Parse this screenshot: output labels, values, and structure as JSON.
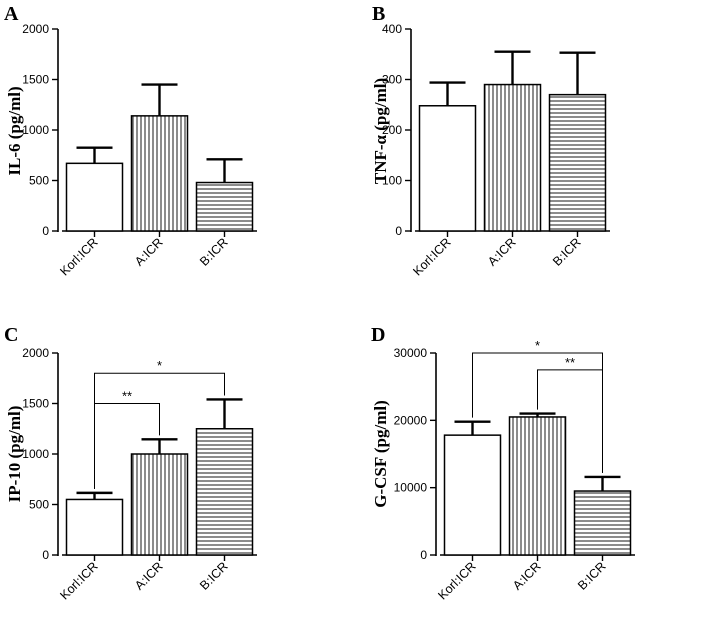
{
  "figure": {
    "patterns": [
      "plain",
      "vertical-hatch",
      "horizontal-hatch"
    ]
  },
  "chart_data": [
    {
      "panel": "A",
      "type": "bar",
      "categories": [
        "Korl:ICR",
        "A:ICR",
        "B:ICR"
      ],
      "values": [
        670,
        1140,
        480
      ],
      "errors": [
        155,
        310,
        230
      ],
      "ylabel": "IL-6 (pg/ml)",
      "ylim": [
        0,
        2000
      ],
      "yticks": [
        0,
        500,
        1000,
        1500,
        2000
      ],
      "ytick_labels": [
        "0",
        "500",
        "1000",
        "1500",
        "2000"
      ],
      "significance": []
    },
    {
      "panel": "B",
      "type": "bar",
      "categories": [
        "Korl:ICR",
        "A:ICR",
        "B:ICR"
      ],
      "values": [
        248,
        290,
        270
      ],
      "errors": [
        46,
        65,
        83
      ],
      "ylabel": "TNF-α (pg/ml)",
      "ylim": [
        0,
        400
      ],
      "yticks": [
        0,
        100,
        200,
        300,
        400
      ],
      "ytick_labels": [
        "0",
        "100",
        "200",
        "300",
        "400"
      ],
      "significance": []
    },
    {
      "panel": "C",
      "type": "bar",
      "categories": [
        "Korl:ICR",
        "A:ICR",
        "B:ICR"
      ],
      "values": [
        550,
        1000,
        1250
      ],
      "errors": [
        65,
        145,
        290
      ],
      "ylabel": "IP-10 (pg/ml)",
      "ylim": [
        0,
        2000
      ],
      "yticks": [
        0,
        500,
        1000,
        1500,
        2000
      ],
      "ytick_labels": [
        "0",
        "500",
        "1000",
        "1500",
        "2000"
      ],
      "significance": [
        {
          "from": 0,
          "to": 1,
          "label": "**",
          "level": 1500
        },
        {
          "from": 0,
          "to": 2,
          "label": "*",
          "level": 1800
        }
      ]
    },
    {
      "panel": "D",
      "type": "bar",
      "categories": [
        "Korl:ICR",
        "A:ICR",
        "B:ICR"
      ],
      "values": [
        17800,
        20500,
        9500
      ],
      "errors": [
        2000,
        500,
        2100
      ],
      "ylabel": "G-CSF (pg/ml)",
      "ylim": [
        0,
        30000
      ],
      "yticks": [
        0,
        10000,
        20000,
        30000
      ],
      "ytick_labels": [
        "0",
        "10000",
        "20000",
        "30000"
      ],
      "significance": [
        {
          "from": 0,
          "to": 2,
          "label": "*",
          "level": 30000
        },
        {
          "from": 1,
          "to": 2,
          "label": "**",
          "level": 27500
        }
      ]
    }
  ]
}
